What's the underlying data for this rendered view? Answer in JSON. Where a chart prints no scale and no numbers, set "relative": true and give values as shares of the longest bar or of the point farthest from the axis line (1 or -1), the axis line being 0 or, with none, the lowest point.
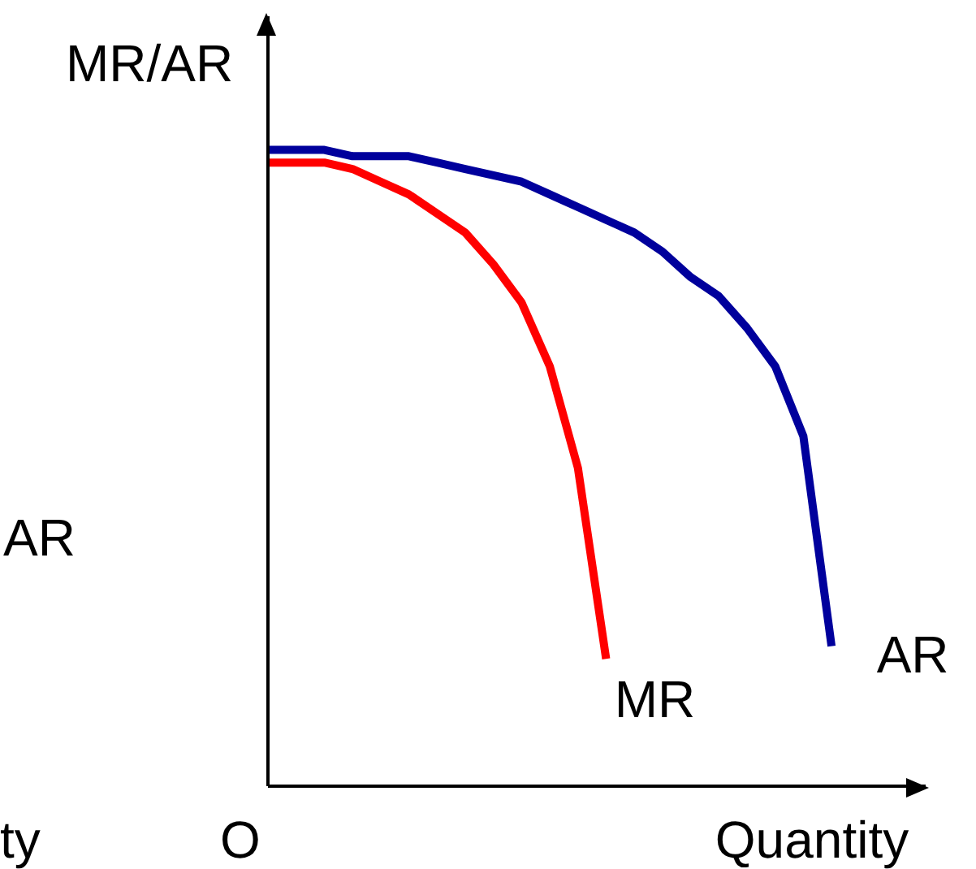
{
  "chart_data": {
    "type": "line",
    "relative": true,
    "ylabel": "MR/AR",
    "xlabel": "Quantity",
    "grid": false,
    "legend": false,
    "marker": "none",
    "line_style": "solid",
    "annotations": [
      "O",
      "AR",
      "ty"
    ],
    "categories": [
      null,
      null,
      null,
      null,
      null,
      null,
      null,
      null,
      null,
      null,
      null,
      null,
      null,
      null,
      null,
      null,
      null,
      null,
      null,
      null,
      null
    ],
    "series": [
      {
        "name": "MR",
        "color": "#ff0000",
        "values": [
          0.98,
          0.98,
          0.98,
          0.97,
          0.95,
          0.93,
          0.9,
          0.87,
          0.82,
          0.76,
          0.66,
          0.5,
          0.2,
          null,
          null,
          null,
          null,
          null,
          null,
          null,
          null
        ]
      },
      {
        "name": "AR",
        "color": "#00009c",
        "values": [
          1,
          1,
          1,
          0.99,
          0.99,
          0.99,
          0.98,
          0.97,
          0.96,
          0.95,
          0.93,
          0.91,
          0.89,
          0.87,
          0.84,
          0.8,
          0.77,
          0.72,
          0.66,
          0.55,
          0.22
        ]
      }
    ]
  }
}
